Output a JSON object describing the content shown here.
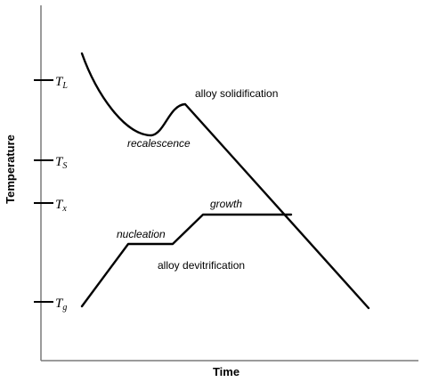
{
  "axes": {
    "x_label": "Time",
    "y_label": "Temperature"
  },
  "temperature_ticks": [
    {
      "main": "T",
      "sub": "L"
    },
    {
      "main": "T",
      "sub": "S"
    },
    {
      "main": "T",
      "sub": "x"
    },
    {
      "main": "T",
      "sub": "g"
    }
  ],
  "curves": {
    "solidification": {
      "label": "alloy solidification"
    },
    "recalescence": {
      "label": "recalescence"
    },
    "devitrification": {
      "label": "alloy devitrification"
    },
    "nucleation": {
      "label": "nucleation"
    },
    "growth": {
      "label": "growth"
    }
  }
}
